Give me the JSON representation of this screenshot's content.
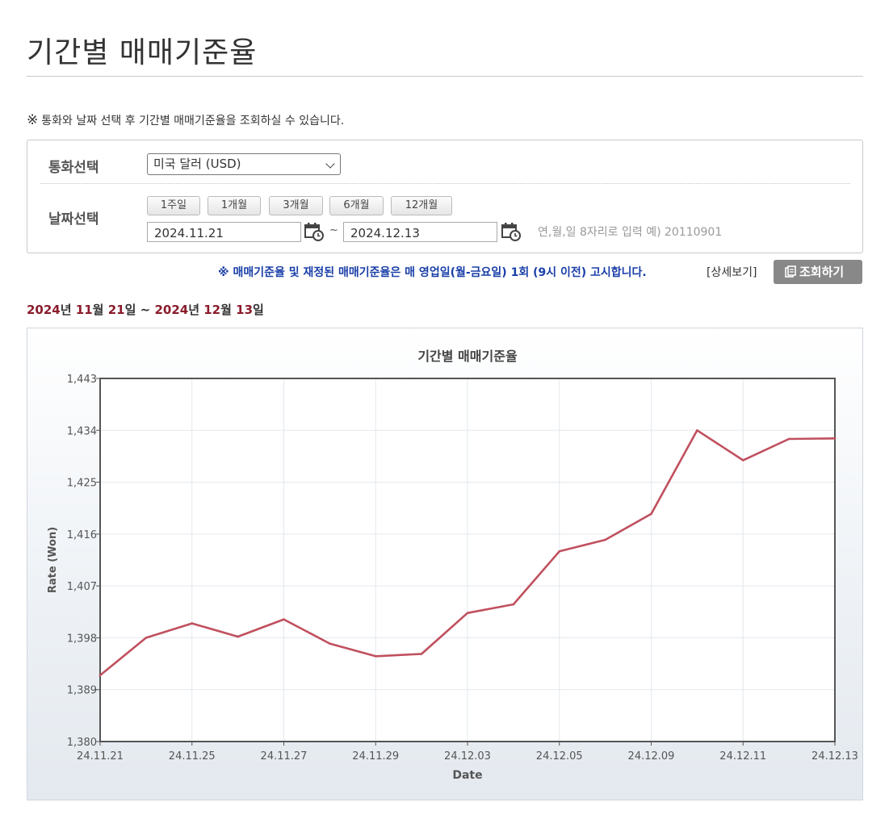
{
  "header": {
    "title": "기간별 매매기준율"
  },
  "notice": {
    "mark": "※",
    "text": "통화와 날짜 선택 후 기간별 매매기준율을 조회하실 수 있습니다."
  },
  "search_form": {
    "currency_label": "통화선택",
    "currency_value": "미국 달러 (USD)",
    "date_label": "날짜선택",
    "period_buttons": [
      "1주일",
      "1개월",
      "3개월",
      "6개월",
      "12개월"
    ],
    "start_date": "2024.11.21",
    "end_date": "2024.12.13",
    "tilde": "~",
    "date_hint": "연,월,일 8자리로 입력 예) 20110901"
  },
  "rule_notice": "※ 매매기준율 및 재정된 매매기준율은 매 영업일(월-금요일) 1회 (9시 이전) 고시합니다.",
  "detail_link": "[상세보기]",
  "search_button": "조회하기",
  "range": {
    "start_year": "2024",
    "year_unit": "년",
    "start_month": "11",
    "month_unit": "월",
    "start_day": "21",
    "day_unit": "일",
    "separator": "~",
    "end_year": "2024",
    "end_month": "12",
    "end_day": "13"
  },
  "colors": {
    "line": "#c0505e",
    "range_number": "#8a1c2b",
    "notice_blue": "#1a3fa8"
  },
  "chart_data": {
    "type": "line",
    "title": "기간별 매매기준율",
    "xlabel": "Date",
    "ylabel": "Rate (Won)",
    "ylim": [
      1380,
      1443
    ],
    "yticks": [
      "1,380",
      "1,389",
      "1,398",
      "1,407",
      "1,416",
      "1,425",
      "1,434",
      "1,443"
    ],
    "xtick_labels": [
      "24.11.21",
      "24.11.25",
      "24.11.27",
      "24.11.29",
      "24.12.03",
      "24.12.05",
      "24.12.09",
      "24.12.11",
      "24.12.13"
    ],
    "grid": true,
    "series": [
      {
        "x": [
          "24.11.21",
          "24.11.22",
          "24.11.25",
          "24.11.26",
          "24.11.27",
          "24.11.28",
          "24.11.29",
          "24.12.02",
          "24.12.03",
          "24.12.04",
          "24.12.05",
          "24.12.06",
          "24.12.09",
          "24.12.10",
          "24.12.11",
          "24.12.12",
          "24.12.13"
        ],
        "values": [
          1391.5,
          1398.0,
          1400.5,
          1398.2,
          1401.2,
          1397.0,
          1394.8,
          1395.2,
          1402.3,
          1403.8,
          1413.0,
          1415.0,
          1419.5,
          1434.0,
          1428.8,
          1432.5,
          1432.6
        ]
      }
    ]
  }
}
